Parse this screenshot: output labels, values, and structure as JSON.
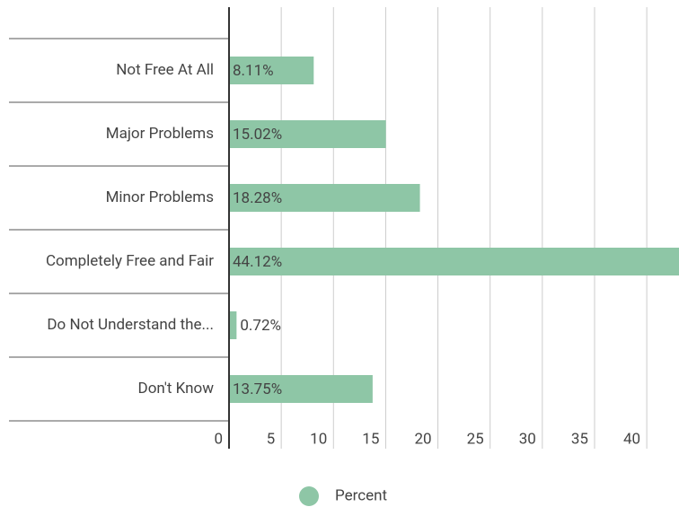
{
  "chart_data": {
    "type": "bar",
    "orientation": "horizontal",
    "categories": [
      "Not Free At All",
      "Major Problems",
      "Minor Problems",
      "Completely Free and Fair",
      "Do Not Understand the...",
      "Don't Know"
    ],
    "series": [
      {
        "name": "Percent",
        "color": "#8ec6a6",
        "values": [
          8.11,
          15.02,
          18.28,
          44.12,
          0.72,
          13.75
        ],
        "value_labels": [
          "8.11%",
          "15.02%",
          "18.28%",
          "44.12%",
          "0.72%",
          "13.75%"
        ]
      }
    ],
    "xlim": [
      0,
      43
    ],
    "xticks": [
      0,
      5,
      10,
      15,
      20,
      25,
      30,
      35,
      40
    ],
    "grid": true,
    "legend": "bottom"
  }
}
